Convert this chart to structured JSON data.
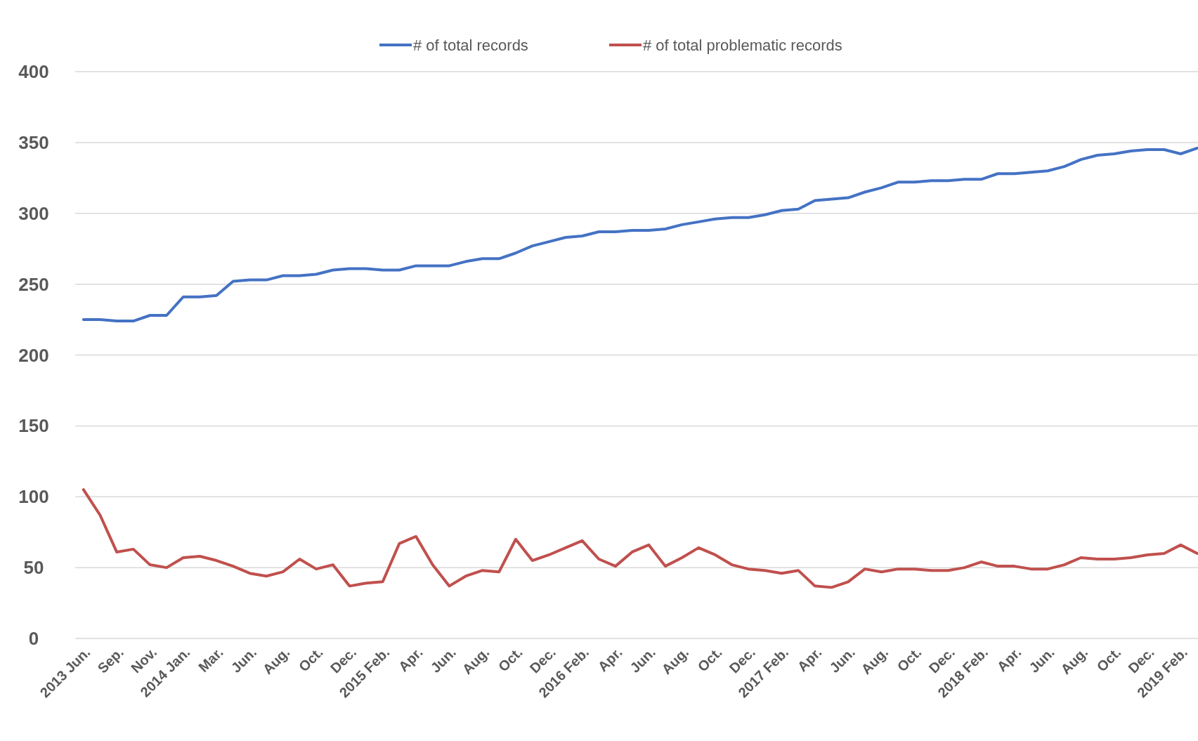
{
  "chart_data": {
    "type": "line",
    "categories": [
      "2013 Jun.",
      null,
      "Sep.",
      null,
      "Nov.",
      null,
      "2014 Jan.",
      null,
      "Mar.",
      null,
      "Jun.",
      null,
      "Aug.",
      null,
      "Oct.",
      null,
      "Dec.",
      null,
      "2015 Feb.",
      null,
      "Apr.",
      null,
      "Jun.",
      null,
      "Aug.",
      null,
      "Oct.",
      null,
      "Dec.",
      null,
      "2016 Feb.",
      null,
      "Apr.",
      null,
      "Jun.",
      null,
      "Aug.",
      null,
      "Oct.",
      null,
      "Dec.",
      null,
      "2017 Feb.",
      null,
      "Apr.",
      null,
      "Jun.",
      null,
      "Aug.",
      null,
      "Oct.",
      null,
      "Dec.",
      null,
      "2018 Feb.",
      null,
      "Apr.",
      null,
      "Jun.",
      null,
      "Aug.",
      null,
      "Oct.",
      null,
      "Dec.",
      null,
      "2019 Feb.",
      null
    ],
    "series": [
      {
        "name": "# of total records",
        "color": "#4472c4",
        "values": [
          225,
          225,
          224,
          224,
          228,
          228,
          241,
          241,
          242,
          252,
          253,
          253,
          256,
          256,
          257,
          260,
          261,
          261,
          260,
          260,
          263,
          263,
          263,
          266,
          268,
          268,
          272,
          277,
          280,
          283,
          284,
          287,
          287,
          288,
          288,
          289,
          292,
          294,
          296,
          297,
          297,
          299,
          302,
          303,
          309,
          310,
          311,
          315,
          318,
          322,
          322,
          323,
          323,
          324,
          324,
          328,
          328,
          329,
          330,
          333,
          338,
          341,
          342,
          344,
          345,
          345,
          342,
          346
        ]
      },
      {
        "name": "# of total problematic records",
        "color": "#c0504d",
        "values": [
          105,
          87,
          61,
          63,
          52,
          50,
          57,
          58,
          55,
          51,
          46,
          44,
          47,
          56,
          49,
          52,
          37,
          39,
          40,
          67,
          72,
          52,
          37,
          44,
          48,
          47,
          70,
          55,
          59,
          64,
          69,
          56,
          51,
          61,
          66,
          51,
          57,
          64,
          59,
          52,
          49,
          48,
          46,
          48,
          37,
          36,
          40,
          49,
          47,
          49,
          49,
          48,
          48,
          50,
          54,
          51,
          51,
          49,
          49,
          52,
          57,
          56,
          56,
          57,
          59,
          60,
          66,
          60
        ]
      }
    ],
    "ylim": [
      0,
      400
    ],
    "yticks": [
      0,
      50,
      100,
      150,
      200,
      250,
      300,
      350,
      400
    ],
    "grid": "y",
    "legend": "top",
    "marker": "none",
    "line_style": "solid"
  }
}
